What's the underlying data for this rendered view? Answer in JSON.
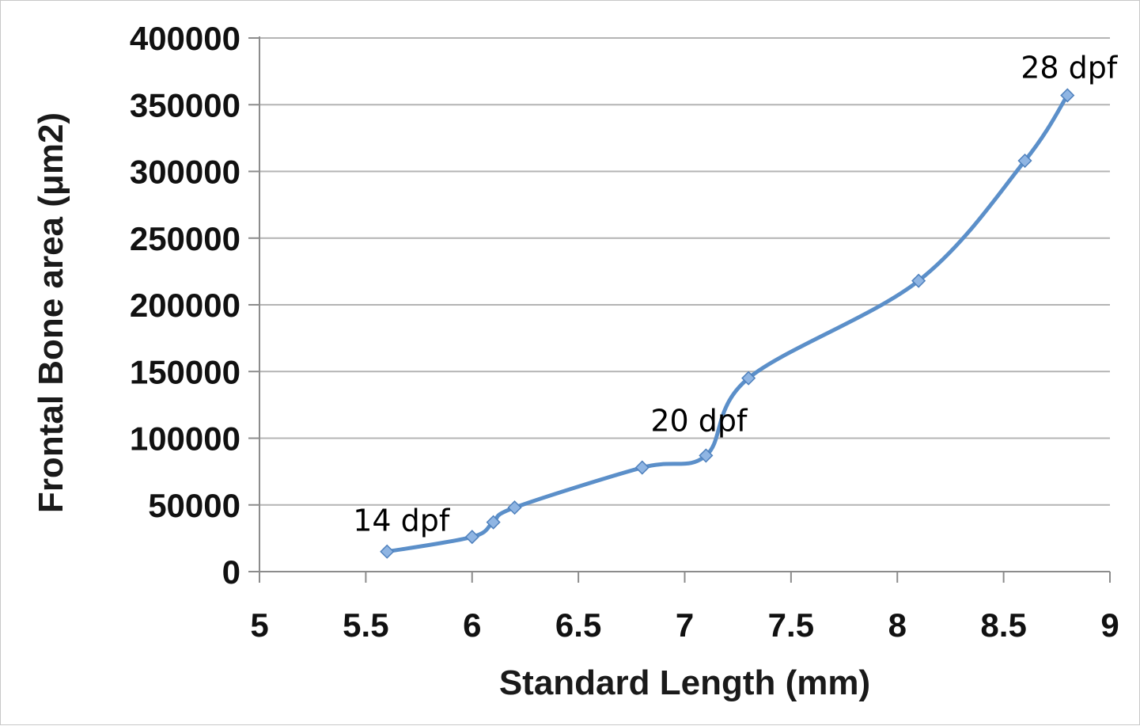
{
  "chart_data": {
    "type": "line",
    "xlabel": "Standard Length (mm)",
    "ylabel": "Frontal Bone area (μm2)",
    "xlim": [
      5,
      9
    ],
    "ylim": [
      0,
      400000
    ],
    "x_ticks": [
      "5",
      "5.5",
      "6",
      "6.5",
      "7",
      "7.5",
      "8",
      "8.5",
      "9"
    ],
    "y_ticks": [
      "0",
      "50000",
      "100000",
      "150000",
      "200000",
      "250000",
      "300000",
      "350000",
      "400000"
    ],
    "grid": "horizontal",
    "series": [
      {
        "color": "#5b8fc9",
        "marker": "diamond",
        "smooth": true,
        "x": [
          5.6,
          6.0,
          6.1,
          6.2,
          6.8,
          7.1,
          7.3,
          8.1,
          8.6,
          8.8
        ],
        "y": [
          15000,
          26000,
          37000,
          48000,
          78000,
          87000,
          145000,
          218000,
          308000,
          357000
        ]
      }
    ],
    "annotations": [
      {
        "text": "14 dpf",
        "x": 5.6,
        "y": 15000
      },
      {
        "text": "20 dpf",
        "x": 7.1,
        "y": 87000
      },
      {
        "text": "28 dpf",
        "x": 8.8,
        "y": 357000
      }
    ]
  }
}
